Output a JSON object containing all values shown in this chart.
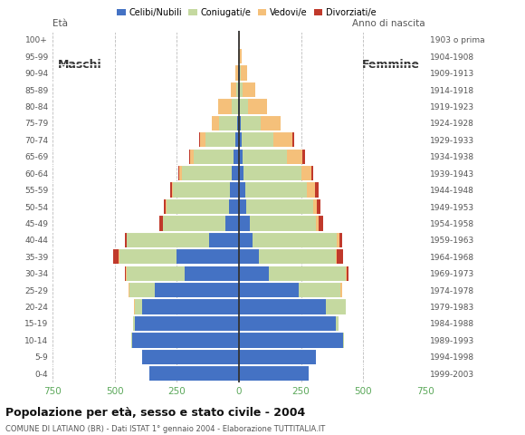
{
  "age_groups": [
    "0-4",
    "5-9",
    "10-14",
    "15-19",
    "20-24",
    "25-29",
    "30-34",
    "35-39",
    "40-44",
    "45-49",
    "50-54",
    "55-59",
    "60-64",
    "65-69",
    "70-74",
    "75-79",
    "80-84",
    "85-89",
    "90-94",
    "95-99",
    "100+"
  ],
  "birth_years": [
    "1999-2003",
    "1994-1998",
    "1989-1993",
    "1984-1988",
    "1979-1983",
    "1974-1978",
    "1969-1973",
    "1964-1968",
    "1959-1963",
    "1954-1958",
    "1949-1953",
    "1944-1948",
    "1939-1943",
    "1934-1938",
    "1929-1933",
    "1924-1928",
    "1919-1923",
    "1914-1918",
    "1909-1913",
    "1904-1908",
    "1903 o prima"
  ],
  "colors": {
    "celibe": "#4472C4",
    "coniugato": "#C5D9A0",
    "vedovo": "#F5C07A",
    "divorziato": "#C0392B"
  },
  "males": {
    "celibe": [
      360,
      390,
      430,
      420,
      390,
      340,
      220,
      250,
      120,
      55,
      40,
      35,
      30,
      20,
      15,
      8,
      5,
      3,
      2,
      0,
      0
    ],
    "coniugato": [
      0,
      0,
      2,
      5,
      30,
      100,
      230,
      230,
      330,
      250,
      250,
      230,
      200,
      160,
      120,
      70,
      25,
      8,
      3,
      0,
      0
    ],
    "vedovo": [
      0,
      0,
      0,
      0,
      2,
      5,
      5,
      5,
      2,
      2,
      3,
      5,
      10,
      15,
      20,
      30,
      55,
      20,
      8,
      2,
      0
    ],
    "divorziato": [
      0,
      0,
      0,
      0,
      0,
      0,
      5,
      20,
      8,
      12,
      10,
      8,
      3,
      5,
      5,
      0,
      0,
      0,
      0,
      0,
      0
    ]
  },
  "females": {
    "nubile": [
      280,
      310,
      420,
      390,
      350,
      240,
      120,
      80,
      55,
      45,
      30,
      25,
      20,
      15,
      10,
      8,
      5,
      5,
      3,
      2,
      1
    ],
    "coniugata": [
      0,
      0,
      2,
      10,
      80,
      170,
      310,
      310,
      340,
      265,
      270,
      250,
      230,
      180,
      130,
      80,
      30,
      10,
      5,
      0,
      0
    ],
    "vedova": [
      0,
      0,
      0,
      0,
      2,
      5,
      5,
      5,
      10,
      10,
      15,
      30,
      40,
      60,
      75,
      80,
      80,
      50,
      25,
      8,
      2
    ],
    "divorziata": [
      0,
      0,
      0,
      0,
      0,
      0,
      5,
      25,
      10,
      20,
      15,
      15,
      8,
      10,
      8,
      0,
      0,
      0,
      0,
      0,
      0
    ]
  },
  "xlim": 750,
  "xticks": [
    -750,
    -500,
    -250,
    0,
    250,
    500,
    750
  ],
  "title": "Popolazione per età, sesso e stato civile - 2004",
  "subtitle": "COMUNE DI LATIANO (BR) - Dati ISTAT 1° gennaio 2004 - Elaborazione TUTTITALIA.IT",
  "ylabel_left": "Età",
  "ylabel_right": "Anno di nascita",
  "label_maschi": "Maschi",
  "label_femmine": "Femmine",
  "legend_labels": [
    "Celibi/Nubili",
    "Coniugati/e",
    "Vedovi/e",
    "Divorziati/e"
  ],
  "bg_color": "#FFFFFF",
  "grid_color": "#BBBBBB",
  "tick_color": "#5BA85A"
}
